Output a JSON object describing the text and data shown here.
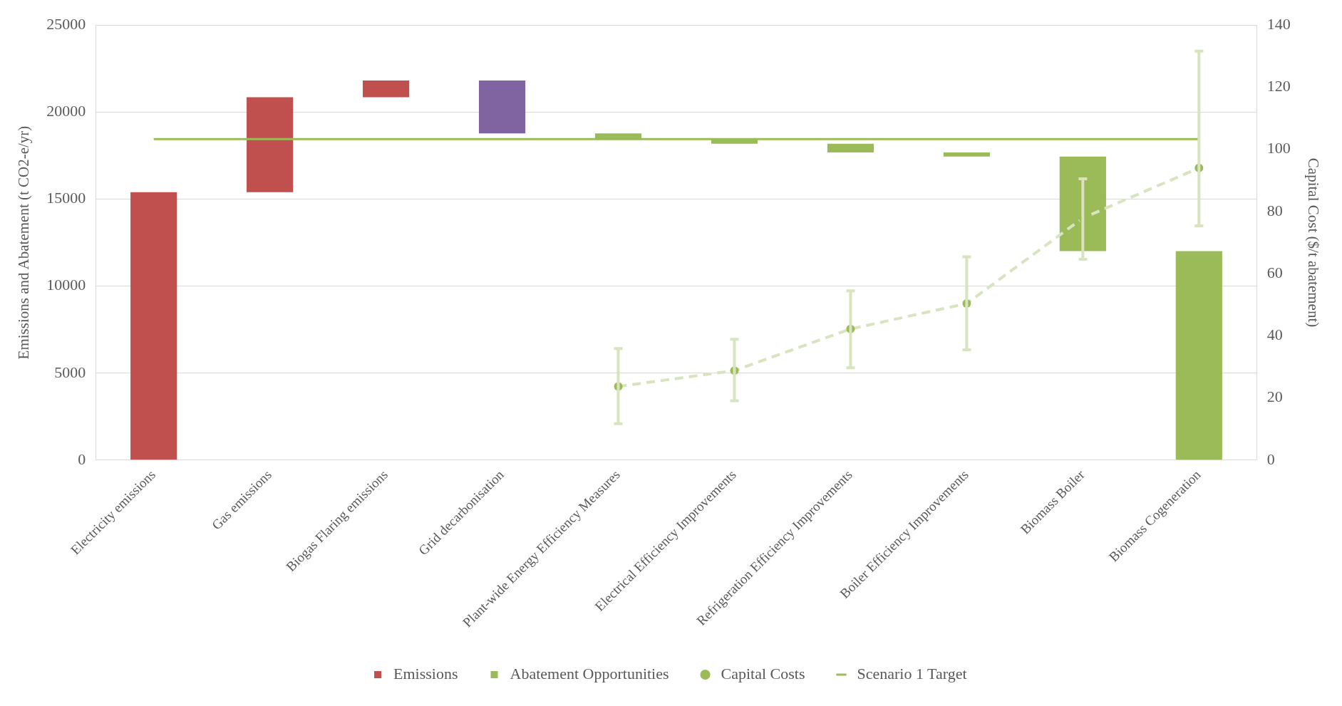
{
  "chart_data": {
    "type": "bar",
    "categories": [
      "Electricity emissions",
      "Gas emissions",
      "Biogas Flaring emissions",
      "Grid decarbonisation",
      "Plant-wide Energy Efficiency Measures",
      "Electrical Efficiency Improvements",
      "Refrigeration Efficiency Improvements",
      "Boiler Efficiency Improvements",
      "Biomass Boiler",
      "Biomass Cogeneration"
    ],
    "ylabel": "Emissions and Abatement (t CO2-e/yr)",
    "y2label": "Capital Cost ($/t abatement)",
    "ylim": [
      0,
      25000
    ],
    "yticks": [
      0,
      5000,
      10000,
      15000,
      20000,
      25000
    ],
    "y2lim": [
      0,
      140
    ],
    "y2ticks": [
      0,
      20,
      40,
      60,
      80,
      100,
      120,
      140
    ],
    "grid": "y",
    "legend": "bottom",
    "series": [
      {
        "name": "Emissions",
        "color": "#c0504d",
        "values": [
          15400,
          5450,
          960,
          null,
          null,
          null,
          null,
          null,
          null,
          null
        ],
        "base": [
          0,
          15400,
          20850,
          null,
          null,
          null,
          null,
          null,
          null,
          null
        ]
      },
      {
        "name": "Abatement Opportunities",
        "color": "#9bbb59",
        "colors": [
          null,
          null,
          null,
          "#8064a2",
          "#9bbb59",
          "#9bbb59",
          "#9bbb59",
          "#9bbb59",
          "#9bbb59",
          "#9bbb59"
        ],
        "values": [
          null,
          null,
          null,
          -3030,
          -310,
          -290,
          -500,
          -240,
          -5430,
          -12010
        ],
        "base": [
          null,
          null,
          null,
          21810,
          18780,
          18470,
          18180,
          17680,
          17440,
          12010
        ]
      },
      {
        "name": "Capital Costs",
        "type": "line",
        "axis": "y2",
        "color": "#9bbb59",
        "marker": "circle",
        "line_style": "dashed",
        "values": [
          null,
          null,
          null,
          null,
          23.7,
          28.8,
          42.2,
          50.4,
          77.9,
          94.0
        ],
        "errors": [
          null,
          null,
          null,
          null,
          [
            11.7,
            35.9
          ],
          [
            19.1,
            38.9
          ],
          [
            29.7,
            54.5
          ],
          [
            35.5,
            65.4
          ],
          [
            64.6,
            90.5
          ],
          [
            75.4,
            131.6
          ]
        ]
      }
    ],
    "ref_lines": [
      {
        "axis": "y",
        "value": 18450,
        "label": "Scenario 1 Target",
        "color": "#9bbb59",
        "line_style": "solid"
      }
    ]
  }
}
